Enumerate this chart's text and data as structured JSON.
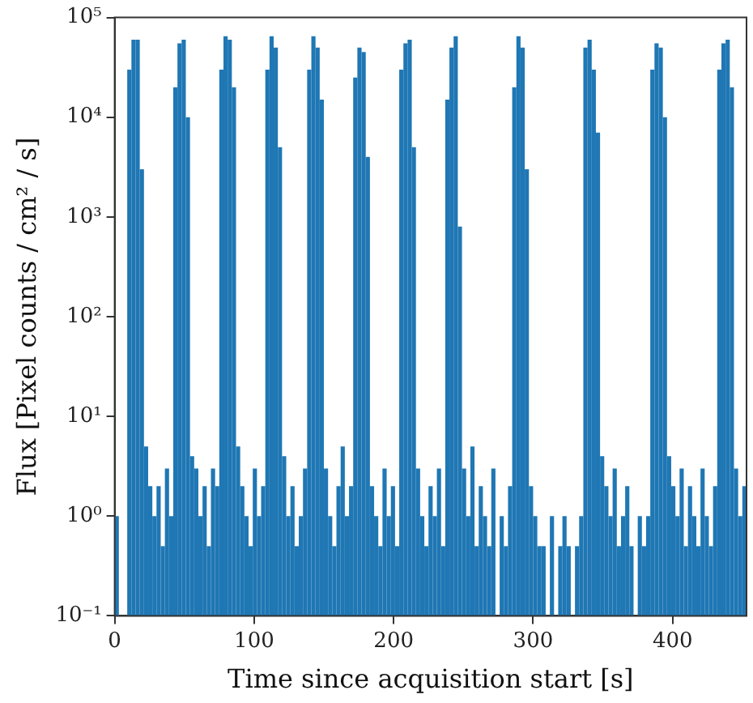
{
  "chart_data": {
    "type": "histogram",
    "xlabel": "Time since acquisition start [s]",
    "ylabel": "Flux [Pixel counts / cm² / s]",
    "color": "#1f77b4",
    "log": "y",
    "grid": false,
    "bins": [
      0,
      3,
      6,
      9,
      12,
      15,
      18,
      21,
      24,
      27,
      30,
      33,
      36,
      39,
      42,
      45,
      48,
      51,
      54,
      57,
      60,
      63,
      66,
      69,
      72,
      75,
      78,
      81,
      84,
      87,
      90,
      93,
      96,
      99,
      102,
      105,
      108,
      111,
      114,
      117,
      120,
      123,
      126,
      129,
      132,
      135,
      138,
      141,
      144,
      147,
      150,
      153,
      156,
      159,
      162,
      165,
      168,
      171,
      174,
      177,
      180,
      183,
      186,
      189,
      192,
      195,
      198,
      201,
      204,
      207,
      210,
      213,
      216,
      219,
      222,
      225,
      228,
      231,
      234,
      237,
      240,
      243,
      246,
      249,
      252,
      255,
      258,
      261,
      264,
      267,
      270,
      273,
      276,
      279,
      282,
      285,
      288,
      291,
      294,
      297,
      300,
      303,
      306,
      309,
      312,
      315,
      318,
      321,
      324,
      327,
      330,
      333,
      336,
      339,
      342,
      345,
      348,
      351,
      354,
      357,
      360,
      363,
      366,
      369,
      372,
      375,
      378,
      381,
      384,
      387,
      390,
      393,
      396,
      399,
      402,
      405,
      408,
      411,
      414,
      417,
      420,
      423,
      426,
      429,
      432,
      435,
      438,
      441,
      444,
      447,
      450,
      453
    ],
    "values": [
      1,
      null,
      null,
      30000,
      60000,
      60000,
      3000,
      5,
      2,
      1,
      2,
      0.5,
      3,
      1,
      20000,
      55000,
      60000,
      10000,
      4,
      3,
      1,
      2,
      0.5,
      3,
      2,
      30000,
      65000,
      60000,
      20000,
      5,
      2,
      1,
      0.5,
      3,
      1,
      2,
      30000,
      65000,
      50000,
      5000,
      4,
      1,
      2,
      0.5,
      1,
      3,
      30000,
      65000,
      50000,
      15000,
      3,
      1,
      0.5,
      2,
      5,
      1,
      2,
      25000,
      50000,
      45000,
      4000,
      2,
      1,
      0.5,
      3,
      1,
      2,
      0.5,
      30000,
      55000,
      60000,
      5000,
      3,
      1,
      0.5,
      2,
      1,
      3,
      0.5,
      15000,
      50000,
      65000,
      800,
      3,
      1,
      5,
      0.5,
      2,
      1,
      0.5,
      3,
      null,
      1,
      0.5,
      2,
      20000,
      65000,
      50000,
      3000,
      2,
      1,
      0.5,
      0.5,
      null,
      1,
      null,
      0.5,
      1,
      0.5,
      null,
      0.5,
      1,
      50000,
      60000,
      30000,
      7000,
      4,
      2,
      1,
      3,
      0.5,
      1,
      2,
      0.5,
      null,
      1,
      0.5,
      1,
      30000,
      55000,
      50000,
      10000,
      4,
      2,
      1,
      3,
      0.5,
      2,
      1,
      0.5,
      3,
      1,
      0.5,
      2,
      30000,
      55000,
      60000,
      20000,
      3,
      1,
      2
    ],
    "xlim": [
      0,
      453
    ],
    "xticks": [
      0,
      100,
      200,
      300,
      400
    ],
    "ylim": [
      0.1,
      100000
    ],
    "yticks": [
      {
        "value": 0.1,
        "label": "10⁻¹"
      },
      {
        "value": 1,
        "label": "10⁰"
      },
      {
        "value": 10,
        "label": "10¹"
      },
      {
        "value": 100,
        "label": "10²"
      },
      {
        "value": 1000,
        "label": "10³"
      },
      {
        "value": 10000,
        "label": "10⁴"
      },
      {
        "value": 100000,
        "label": "10⁵"
      }
    ]
  }
}
